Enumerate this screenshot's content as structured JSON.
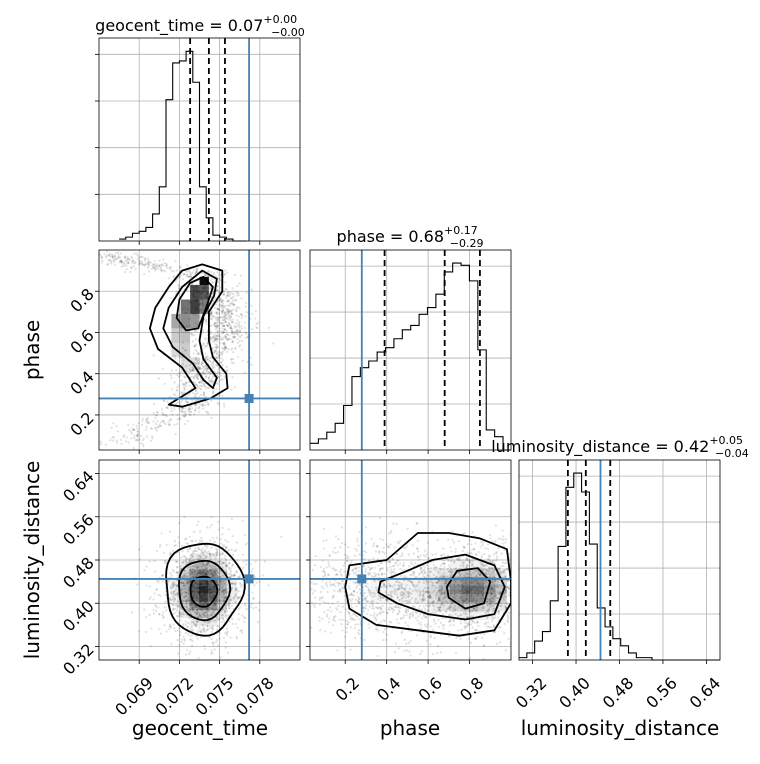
{
  "chart_data": {
    "type": "corner",
    "parameters": [
      "geocent_time",
      "phase",
      "luminosity_distance"
    ],
    "truths": {
      "geocent_time": 0.0772,
      "phase": 0.28,
      "luminosity_distance": 0.445
    },
    "colors": {
      "truth": "#4682b4",
      "contour": "#000000",
      "points": "#000000"
    },
    "grid": true,
    "panels": [
      {
        "id": "hist-geocent",
        "type": "histogram",
        "parameter": "geocent_time",
        "title": {
          "lead": "geocent_time = 0.07",
          "sup": "+0.00",
          "sub": "−0.00"
        },
        "xlim": [
          0.066,
          0.081
        ],
        "xticks": [
          0.069,
          0.072,
          0.075,
          0.078
        ],
        "quantiles": [
          0.0728,
          0.0742,
          0.0754
        ],
        "truth": 0.0772,
        "bin_width": 0.0005,
        "bins_start": 0.0675,
        "counts": [
          1,
          2,
          4,
          5,
          7,
          14,
          28,
          73,
          92,
          93,
          98,
          82,
          28,
          12,
          3,
          2,
          1,
          0,
          0
        ]
      },
      {
        "id": "scatter-phase-vs-time",
        "type": "2d",
        "x": "geocent_time",
        "y": "phase",
        "xlim": [
          0.066,
          0.081
        ],
        "ylim": [
          0.03,
          1.0
        ],
        "yticks": [
          0.2,
          0.4,
          0.6,
          0.8
        ],
        "ylabel": "phase"
      },
      {
        "id": "hist-phase",
        "type": "histogram",
        "parameter": "phase",
        "title": {
          "lead": "phase = 0.68",
          "sup": "+0.17",
          "sub": "−0.29"
        },
        "xlim": [
          0.03,
          1.0
        ],
        "xticks": [
          0.2,
          0.4,
          0.6,
          0.8
        ],
        "quantiles": [
          0.39,
          0.68,
          0.85
        ],
        "truth": 0.28,
        "bin_width": 0.0405,
        "bins_start": 0.03,
        "counts": [
          3,
          5,
          8,
          12,
          20,
          33,
          37,
          40,
          44,
          46,
          50,
          54,
          56,
          61,
          64,
          70,
          80,
          84,
          83,
          76,
          45,
          9,
          6,
          0
        ]
      },
      {
        "id": "scatter-ld-vs-time",
        "type": "2d",
        "x": "geocent_time",
        "y": "luminosity_distance",
        "xlim": [
          0.066,
          0.081
        ],
        "ylim": [
          0.295,
          0.665
        ],
        "yticks": [
          0.32,
          0.4,
          0.48,
          0.56,
          0.64
        ],
        "ylabel": "luminosity_distance",
        "xlabel": "geocent_time"
      },
      {
        "id": "scatter-ld-vs-phase",
        "type": "2d",
        "x": "phase",
        "y": "luminosity_distance",
        "xlim": [
          0.03,
          1.0
        ],
        "ylim": [
          0.295,
          0.665
        ],
        "xlabel": "phase"
      },
      {
        "id": "hist-ld",
        "type": "histogram",
        "parameter": "luminosity_distance",
        "title": {
          "lead": "luminosity_distance = 0.42",
          "sup": "+0.05",
          "sub": "−0.04"
        },
        "xlim": [
          0.295,
          0.665
        ],
        "xticks": [
          0.32,
          0.4,
          0.48,
          0.56,
          0.64
        ],
        "quantiles": [
          0.385,
          0.418,
          0.463
        ],
        "truth": 0.445,
        "bin_width": 0.0144,
        "bins_start": 0.295,
        "counts": [
          1,
          3,
          8,
          12,
          25,
          48,
          73,
          79,
          71,
          49,
          22,
          14,
          9,
          6,
          3,
          1,
          1,
          0,
          0,
          0,
          0,
          0,
          0,
          0,
          0,
          0
        ]
      }
    ],
    "axis_labels": {
      "x": [
        "geocent_time",
        "phase",
        "luminosity_distance"
      ],
      "y": [
        "phase",
        "luminosity_distance"
      ]
    },
    "tick_labels": {
      "geocent_time": [
        "0.069",
        "0.072",
        "0.075",
        "0.078"
      ],
      "phase": [
        "0.2",
        "0.4",
        "0.6",
        "0.8"
      ],
      "luminosity_distance": [
        "0.32",
        "0.40",
        "0.48",
        "0.56",
        "0.64"
      ]
    }
  }
}
